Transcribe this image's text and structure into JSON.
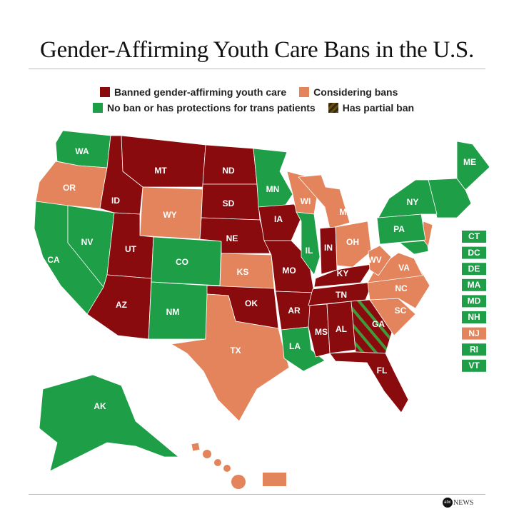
{
  "title": "Gender-Affirming Youth Care Bans in the U.S.",
  "colors": {
    "banned": "#8a0b0e",
    "considering": "#e3845c",
    "none": "#1f9e48",
    "partial_a": "#8a0b0e",
    "partial_b": "#3f9a3a"
  },
  "legend": [
    {
      "key": "banned",
      "label": "Banned gender-affirming youth care"
    },
    {
      "key": "considering",
      "label": "Considering bans"
    },
    {
      "key": "none",
      "label": "No ban or has protections for trans patients"
    },
    {
      "key": "partial",
      "label": "Has partial ban"
    }
  ],
  "states": [
    {
      "abbr": "WA",
      "status": "none"
    },
    {
      "abbr": "OR",
      "status": "considering"
    },
    {
      "abbr": "CA",
      "status": "none"
    },
    {
      "abbr": "NV",
      "status": "none"
    },
    {
      "abbr": "ID",
      "status": "banned"
    },
    {
      "abbr": "MT",
      "status": "banned"
    },
    {
      "abbr": "WY",
      "status": "considering"
    },
    {
      "abbr": "UT",
      "status": "banned"
    },
    {
      "abbr": "CO",
      "status": "none"
    },
    {
      "abbr": "AZ",
      "status": "banned"
    },
    {
      "abbr": "NM",
      "status": "none"
    },
    {
      "abbr": "ND",
      "status": "banned"
    },
    {
      "abbr": "SD",
      "status": "banned"
    },
    {
      "abbr": "NE",
      "status": "banned"
    },
    {
      "abbr": "KS",
      "status": "considering"
    },
    {
      "abbr": "OK",
      "status": "banned"
    },
    {
      "abbr": "TX",
      "status": "considering"
    },
    {
      "abbr": "MN",
      "status": "none"
    },
    {
      "abbr": "IA",
      "status": "banned"
    },
    {
      "abbr": "MO",
      "status": "banned"
    },
    {
      "abbr": "AR",
      "status": "banned"
    },
    {
      "abbr": "LA",
      "status": "none"
    },
    {
      "abbr": "WI",
      "status": "considering"
    },
    {
      "abbr": "IL",
      "status": "none"
    },
    {
      "abbr": "MI",
      "status": "considering"
    },
    {
      "abbr": "IN",
      "status": "banned"
    },
    {
      "abbr": "OH",
      "status": "considering"
    },
    {
      "abbr": "KY",
      "status": "banned"
    },
    {
      "abbr": "TN",
      "status": "banned"
    },
    {
      "abbr": "MS",
      "status": "banned"
    },
    {
      "abbr": "AL",
      "status": "banned"
    },
    {
      "abbr": "GA",
      "status": "partial"
    },
    {
      "abbr": "FL",
      "status": "banned"
    },
    {
      "abbr": "SC",
      "status": "considering"
    },
    {
      "abbr": "NC",
      "status": "considering"
    },
    {
      "abbr": "VA",
      "status": "considering"
    },
    {
      "abbr": "WV",
      "status": "considering"
    },
    {
      "abbr": "PA",
      "status": "none"
    },
    {
      "abbr": "NY",
      "status": "none"
    },
    {
      "abbr": "ME",
      "status": "none"
    },
    {
      "abbr": "AK",
      "status": "none"
    },
    {
      "abbr": "HI",
      "status": "considering"
    }
  ],
  "small_states": [
    {
      "abbr": "CT",
      "status": "none"
    },
    {
      "abbr": "DC",
      "status": "none"
    },
    {
      "abbr": "DE",
      "status": "none"
    },
    {
      "abbr": "MA",
      "status": "none"
    },
    {
      "abbr": "MD",
      "status": "none"
    },
    {
      "abbr": "NH",
      "status": "none"
    },
    {
      "abbr": "NJ",
      "status": "considering"
    },
    {
      "abbr": "RI",
      "status": "none"
    },
    {
      "abbr": "VT",
      "status": "none"
    }
  ],
  "logo": {
    "text": "NEWS",
    "mark": "abc"
  }
}
